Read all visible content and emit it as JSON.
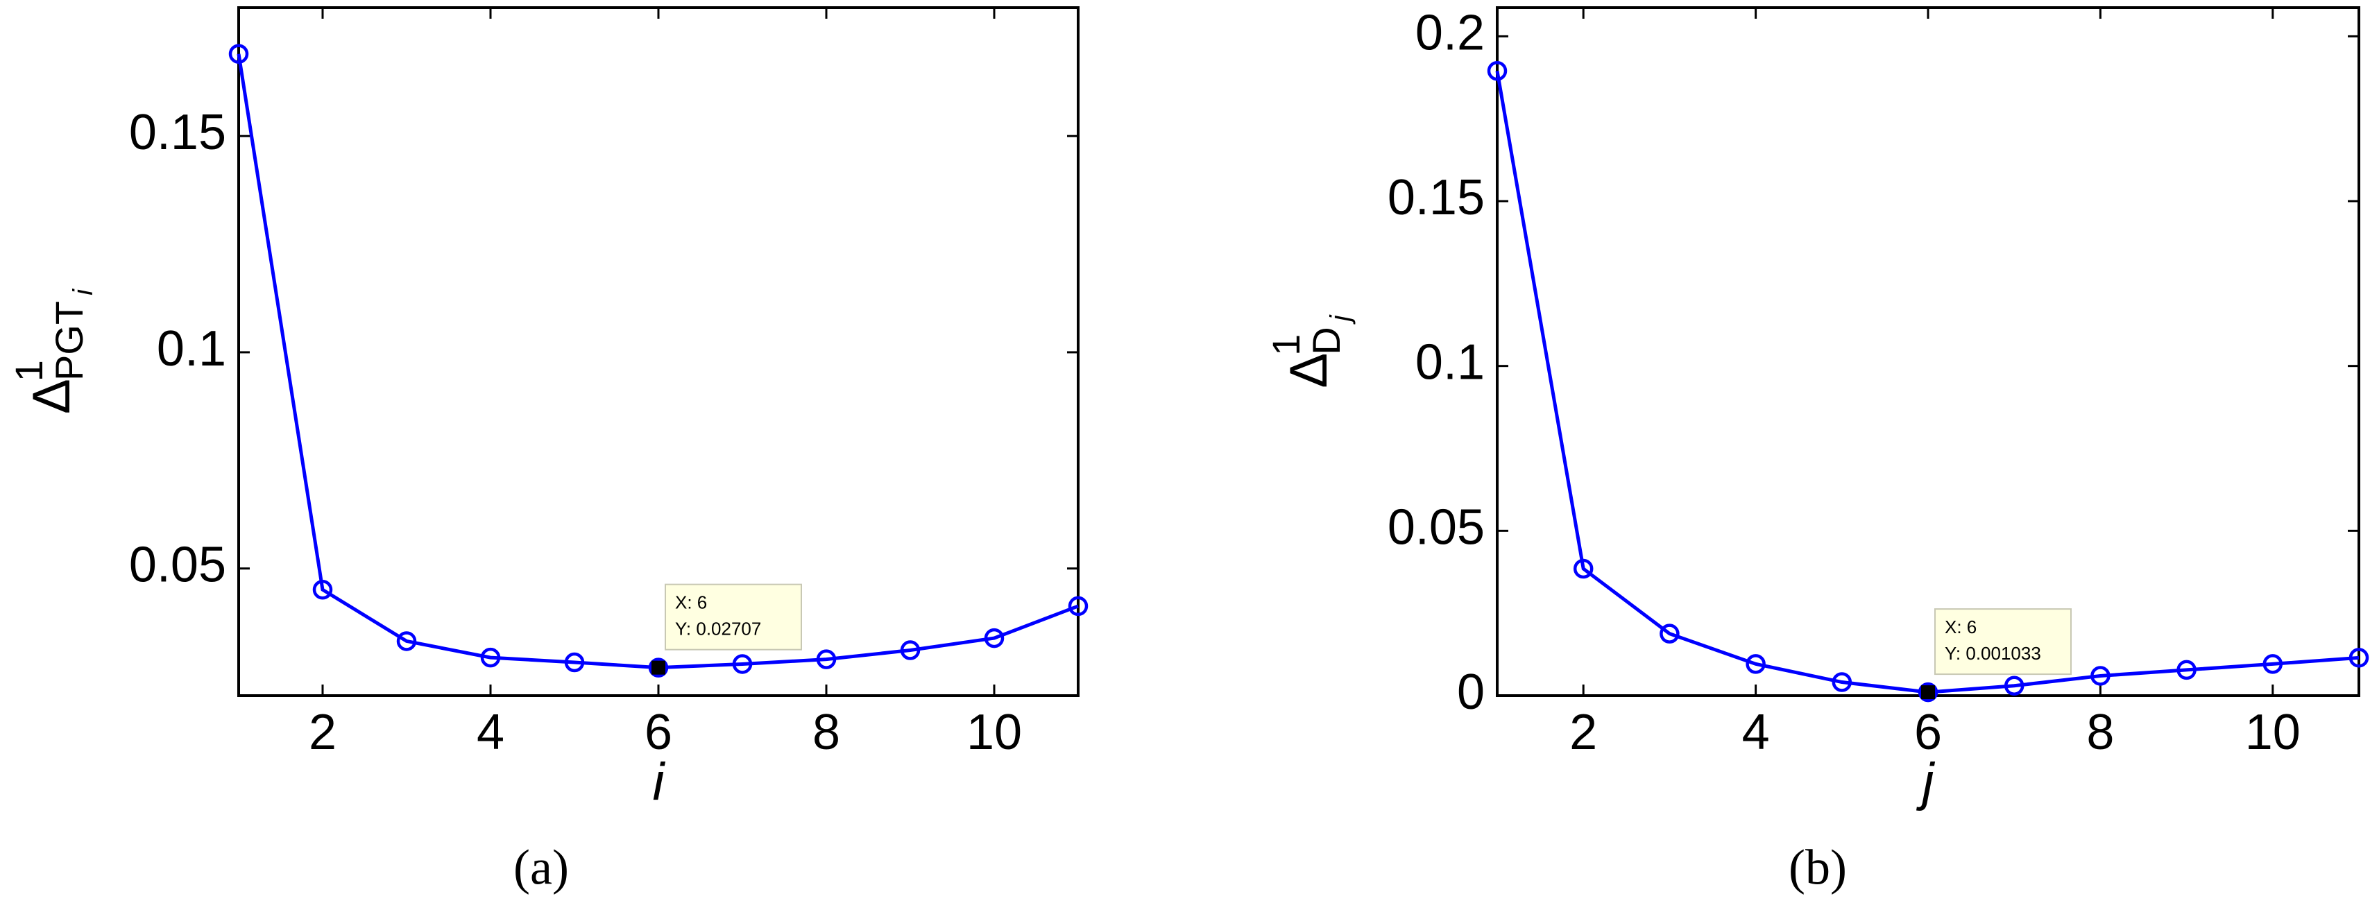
{
  "chart_data": [
    {
      "type": "line",
      "caption": "(a)",
      "ylabel": {
        "base": "Δ",
        "sup": "1",
        "sub": "PGT",
        "subsub": "i"
      },
      "xlabel": "i",
      "x": [
        1,
        2,
        3,
        4,
        5,
        6,
        7,
        8,
        9,
        10,
        11
      ],
      "series": [
        {
          "color": "#0000ff",
          "values": [
            0.169,
            0.0451,
            0.0332,
            0.0294,
            0.0283,
            0.02707,
            0.0279,
            0.029,
            0.0311,
            0.0339,
            0.0413
          ]
        }
      ],
      "xlim": [
        1,
        11
      ],
      "xticks": [
        2,
        4,
        6,
        8,
        10
      ],
      "ylim": [
        0.0206,
        0.1797
      ],
      "yticks": [
        0.05,
        0.1,
        0.15
      ],
      "datatip": {
        "index": 5,
        "x_text": "X: 6",
        "y_text": "Y: 0.02707"
      }
    },
    {
      "type": "line",
      "caption": "(b)",
      "ylabel": {
        "base": "Δ",
        "sup": "1",
        "sub": "D",
        "subsub": "j"
      },
      "xlabel": "j",
      "x": [
        1,
        2,
        3,
        4,
        5,
        6,
        7,
        8,
        9,
        10,
        11
      ],
      "series": [
        {
          "color": "#0000ff",
          "values": [
            0.1895,
            0.0385,
            0.0188,
            0.0096,
            0.0041,
            0.001033,
            0.003,
            0.006,
            0.0078,
            0.0096,
            0.0115
          ]
        }
      ],
      "xlim": [
        1,
        11
      ],
      "xticks": [
        2,
        4,
        6,
        8,
        10
      ],
      "ylim": [
        0,
        0.2087
      ],
      "yticks": [
        0,
        0.05,
        0.1,
        0.15,
        0.2
      ],
      "datatip": {
        "index": 5,
        "x_text": "X: 6",
        "y_text": "Y: 0.001033"
      }
    }
  ]
}
